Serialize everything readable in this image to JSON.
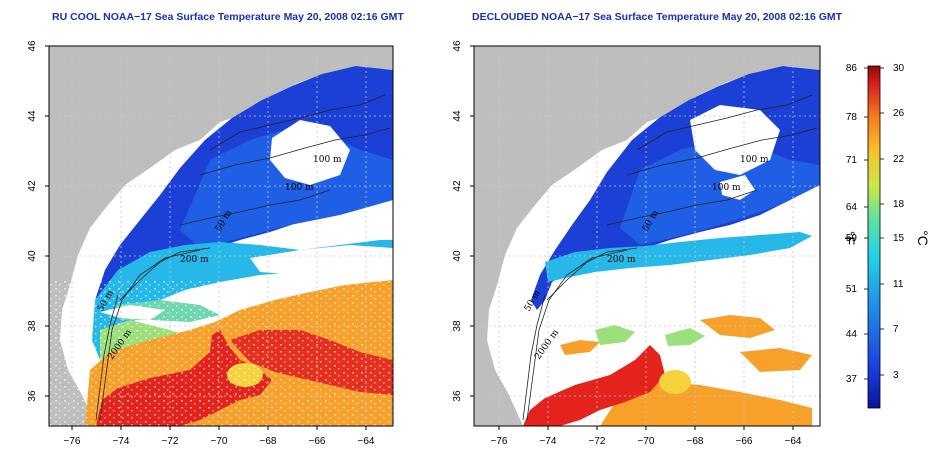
{
  "panels": [
    {
      "title": "RU COOL NOAA−17 Sea Surface Temperature May 20, 2008 02:16 GMT",
      "contour_labels": [
        "100 m",
        "100 m",
        "50 m",
        "200 m",
        "50 m",
        "2000 m"
      ]
    },
    {
      "title": "DECLOUDED NOAA−17 Sea Surface Temperature May 20, 2008 02:16 GMT",
      "contour_labels": [
        "100 m",
        "100 m",
        "50 m",
        "200 m",
        "50 m",
        "2000 m"
      ]
    }
  ],
  "lat_ticks": [
    "46",
    "44",
    "42",
    "40",
    "38",
    "36"
  ],
  "lon_ticks": [
    "−76",
    "−74",
    "−72",
    "−70",
    "−68",
    "−66",
    "−64"
  ],
  "colorbar": {
    "fahrenheit_ticks": [
      "86",
      "78",
      "71",
      "64",
      "59",
      "51",
      "44",
      "37"
    ],
    "celsius_ticks": [
      "30",
      "26",
      "22",
      "18",
      "15",
      "11",
      "7",
      "3"
    ],
    "fahrenheit_label": "°F",
    "celsius_label": "°C"
  },
  "colors": {
    "land": "#bebebe",
    "cloud": "#ffffff",
    "cold": "#1c3fd6",
    "cool": "#25b8e8",
    "mild": "#9be07a",
    "warm": "#f7a12a",
    "hot": "#e3231c",
    "title": "#1a2fb3"
  }
}
